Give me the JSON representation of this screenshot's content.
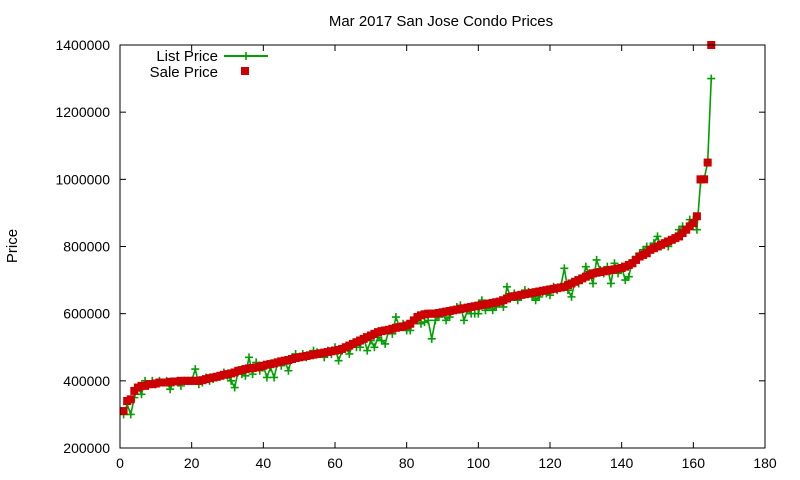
{
  "chart_data": {
    "type": "scatter",
    "title": "Mar 2017 San Jose Condo Prices",
    "xlabel": "",
    "ylabel": "Price",
    "xlim": [
      0,
      180
    ],
    "ylim": [
      200000,
      1400000
    ],
    "xticks": [
      0,
      20,
      40,
      60,
      80,
      100,
      120,
      140,
      160,
      180
    ],
    "yticks": [
      200000,
      400000,
      600000,
      800000,
      1000000,
      1200000,
      1400000
    ],
    "grid": false,
    "legend_position": "top-left",
    "series": [
      {
        "name": "List Price",
        "style": "line-with-plus-markers",
        "color": "#00a000",
        "x": [
          1,
          2,
          3,
          4,
          5,
          6,
          7,
          8,
          9,
          10,
          11,
          12,
          13,
          14,
          15,
          16,
          17,
          18,
          19,
          20,
          21,
          22,
          23,
          24,
          25,
          26,
          27,
          28,
          29,
          30,
          31,
          32,
          33,
          34,
          35,
          36,
          37,
          38,
          39,
          40,
          41,
          42,
          43,
          44,
          45,
          46,
          47,
          48,
          49,
          50,
          51,
          52,
          53,
          54,
          55,
          56,
          57,
          58,
          59,
          60,
          61,
          62,
          63,
          64,
          65,
          66,
          67,
          68,
          69,
          70,
          71,
          72,
          73,
          74,
          75,
          76,
          77,
          78,
          79,
          80,
          81,
          82,
          83,
          84,
          85,
          86,
          87,
          88,
          89,
          90,
          91,
          92,
          93,
          94,
          95,
          96,
          97,
          98,
          99,
          100,
          101,
          102,
          103,
          104,
          105,
          106,
          107,
          108,
          109,
          110,
          111,
          112,
          113,
          114,
          115,
          116,
          117,
          118,
          119,
          120,
          121,
          122,
          123,
          124,
          125,
          126,
          127,
          128,
          129,
          130,
          131,
          132,
          133,
          134,
          135,
          136,
          137,
          138,
          139,
          140,
          141,
          142,
          143,
          144,
          145,
          146,
          147,
          148,
          149,
          150,
          151,
          152,
          153,
          154,
          155,
          156,
          157,
          158,
          159,
          160,
          161,
          162,
          163,
          164,
          165
        ],
        "y": [
          300000,
          330000,
          300000,
          350000,
          380000,
          360000,
          400000,
          390000,
          400000,
          390000,
          400000,
          395000,
          400000,
          375000,
          395000,
          400000,
          385000,
          400000,
          400000,
          400000,
          435000,
          390000,
          395000,
          410000,
          400000,
          405000,
          410000,
          415000,
          425000,
          415000,
          400000,
          380000,
          430000,
          420000,
          415000,
          470000,
          420000,
          455000,
          430000,
          445000,
          410000,
          440000,
          410000,
          455000,
          445000,
          460000,
          430000,
          470000,
          480000,
          470000,
          480000,
          470000,
          480000,
          490000,
          485000,
          480000,
          470000,
          490000,
          480000,
          500000,
          460000,
          490000,
          500000,
          480000,
          510000,
          500000,
          500000,
          530000,
          490000,
          520000,
          500000,
          530000,
          520000,
          510000,
          550000,
          540000,
          590000,
          560000,
          570000,
          550000,
          550000,
          580000,
          580000,
          570000,
          575000,
          580000,
          525000,
          580000,
          590000,
          600000,
          580000,
          590000,
          610000,
          620000,
          625000,
          580000,
          610000,
          600000,
          600000,
          600000,
          640000,
          610000,
          620000,
          610000,
          620000,
          640000,
          620000,
          680000,
          650000,
          660000,
          640000,
          650000,
          670000,
          665000,
          650000,
          640000,
          650000,
          665000,
          660000,
          655000,
          680000,
          670000,
          680000,
          735000,
          670000,
          650000,
          700000,
          690000,
          700000,
          740000,
          720000,
          690000,
          760000,
          730000,
          720000,
          740000,
          690000,
          750000,
          720000,
          740000,
          700000,
          710000,
          760000,
          770000,
          780000,
          790000,
          800000,
          800000,
          810000,
          830000,
          800000,
          815000,
          800000,
          820000,
          830000,
          850000,
          860000,
          850000,
          880000,
          880000,
          850000,
          990000,
          1000000,
          1050000,
          1300000
        ]
      },
      {
        "name": "Sale Price",
        "style": "square-markers",
        "color": "#cc0000",
        "x": [
          1,
          2,
          3,
          4,
          5,
          6,
          7,
          8,
          9,
          10,
          11,
          12,
          13,
          14,
          15,
          16,
          17,
          18,
          19,
          20,
          21,
          22,
          23,
          24,
          25,
          26,
          27,
          28,
          29,
          30,
          31,
          32,
          33,
          34,
          35,
          36,
          37,
          38,
          39,
          40,
          41,
          42,
          43,
          44,
          45,
          46,
          47,
          48,
          49,
          50,
          51,
          52,
          53,
          54,
          55,
          56,
          57,
          58,
          59,
          60,
          61,
          62,
          63,
          64,
          65,
          66,
          67,
          68,
          69,
          70,
          71,
          72,
          73,
          74,
          75,
          76,
          77,
          78,
          79,
          80,
          81,
          82,
          83,
          84,
          85,
          86,
          87,
          88,
          89,
          90,
          91,
          92,
          93,
          94,
          95,
          96,
          97,
          98,
          99,
          100,
          101,
          102,
          103,
          104,
          105,
          106,
          107,
          108,
          109,
          110,
          111,
          112,
          113,
          114,
          115,
          116,
          117,
          118,
          119,
          120,
          121,
          122,
          123,
          124,
          125,
          126,
          127,
          128,
          129,
          130,
          131,
          132,
          133,
          134,
          135,
          136,
          137,
          138,
          139,
          140,
          141,
          142,
          143,
          144,
          145,
          146,
          147,
          148,
          149,
          150,
          151,
          152,
          153,
          154,
          155,
          156,
          157,
          158,
          159,
          160,
          161,
          162,
          163,
          164,
          165
        ],
        "y": [
          310000,
          340000,
          345000,
          370000,
          380000,
          385000,
          385000,
          390000,
          390000,
          392000,
          395000,
          395000,
          395000,
          397000,
          398000,
          398000,
          400000,
          400000,
          400000,
          400000,
          400000,
          400000,
          402000,
          405000,
          408000,
          410000,
          412000,
          415000,
          418000,
          420000,
          422000,
          425000,
          430000,
          432000,
          435000,
          437000,
          438000,
          440000,
          442000,
          445000,
          448000,
          450000,
          452000,
          455000,
          458000,
          460000,
          462000,
          465000,
          468000,
          470000,
          472000,
          474000,
          476000,
          478000,
          480000,
          482000,
          484000,
          486000,
          488000,
          490000,
          492000,
          495000,
          500000,
          505000,
          510000,
          515000,
          520000,
          525000,
          530000,
          535000,
          540000,
          545000,
          548000,
          550000,
          552000,
          555000,
          558000,
          560000,
          562000,
          565000,
          570000,
          580000,
          590000,
          595000,
          598000,
          600000,
          600000,
          600000,
          602000,
          604000,
          606000,
          608000,
          610000,
          612000,
          614000,
          616000,
          618000,
          620000,
          622000,
          624000,
          626000,
          628000,
          630000,
          632000,
          634000,
          636000,
          640000,
          645000,
          650000,
          652000,
          654000,
          656000,
          658000,
          660000,
          662000,
          664000,
          666000,
          668000,
          670000,
          672000,
          674000,
          676000,
          678000,
          680000,
          685000,
          690000,
          695000,
          700000,
          705000,
          710000,
          715000,
          720000,
          722000,
          724000,
          726000,
          728000,
          730000,
          732000,
          734000,
          736000,
          740000,
          745000,
          750000,
          760000,
          770000,
          775000,
          780000,
          790000,
          795000,
          800000,
          805000,
          810000,
          815000,
          820000,
          825000,
          830000,
          840000,
          850000,
          860000,
          870000,
          890000,
          1000000,
          1000000,
          1050000,
          1400000
        ]
      }
    ]
  }
}
